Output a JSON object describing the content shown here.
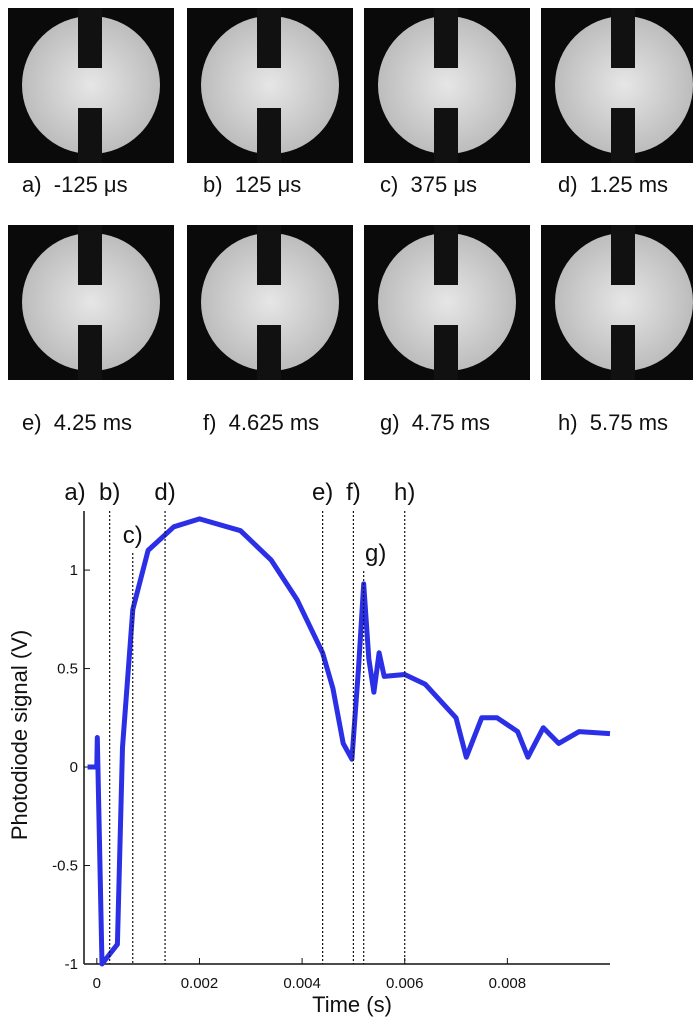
{
  "photos": [
    {
      "caption": "a)  -125 μs"
    },
    {
      "caption": "b)  125 μs"
    },
    {
      "caption": "c)  375 μs"
    },
    {
      "caption": "d)  1.25 ms"
    },
    {
      "caption": "e)  4.25 ms"
    },
    {
      "caption": "f)  4.625 ms"
    },
    {
      "caption": "g)  4.75 ms"
    },
    {
      "caption": "h)  5.75 ms"
    }
  ],
  "chart_data": {
    "type": "line",
    "xlabel": "Time (s)",
    "ylabel": "Photodiode signal (V)",
    "color": "#2b2fe6",
    "x": [
      -0.00018,
      0,
      1e-05,
      0.0001,
      0.0004,
      0.0005,
      0.0007,
      0.001,
      0.0015,
      0.002,
      0.0028,
      0.0034,
      0.0039,
      0.0044,
      0.0046,
      0.0048,
      0.00497,
      0.0051,
      0.0052,
      0.0053,
      0.0054,
      0.0055,
      0.0056,
      0.006,
      0.0064,
      0.007,
      0.0072,
      0.0075,
      0.0078,
      0.0082,
      0.0084,
      0.0087,
      0.009,
      0.0094,
      0.01
    ],
    "values": [
      0,
      0,
      0.15,
      -1,
      -0.9,
      0.1,
      0.8,
      1.1,
      1.22,
      1.26,
      1.2,
      1.05,
      0.85,
      0.58,
      0.4,
      0.12,
      0.04,
      0.5,
      0.93,
      0.55,
      0.38,
      0.58,
      0.46,
      0.47,
      0.42,
      0.25,
      0.05,
      0.25,
      0.25,
      0.18,
      0.05,
      0.2,
      0.12,
      0.18,
      0.17
    ],
    "xlim": [
      -0.00025,
      0.01
    ],
    "ylim": [
      -1,
      1.3
    ],
    "xticks": [
      0,
      0.002,
      0.004,
      0.006,
      0.008
    ],
    "yticks": [
      -1,
      -0.5,
      0,
      0.5,
      1
    ],
    "annotation": "a)",
    "markers": [
      {
        "label": "b)",
        "x": 0.00025
      },
      {
        "label": "c)",
        "x": 0.0007
      },
      {
        "label": "d)",
        "x": 0.00133
      },
      {
        "label": "e)",
        "x": 0.0044
      },
      {
        "label": "f)",
        "x": 0.005
      },
      {
        "label": "g)",
        "x": 0.0052
      },
      {
        "label": "h)",
        "x": 0.006
      }
    ]
  }
}
